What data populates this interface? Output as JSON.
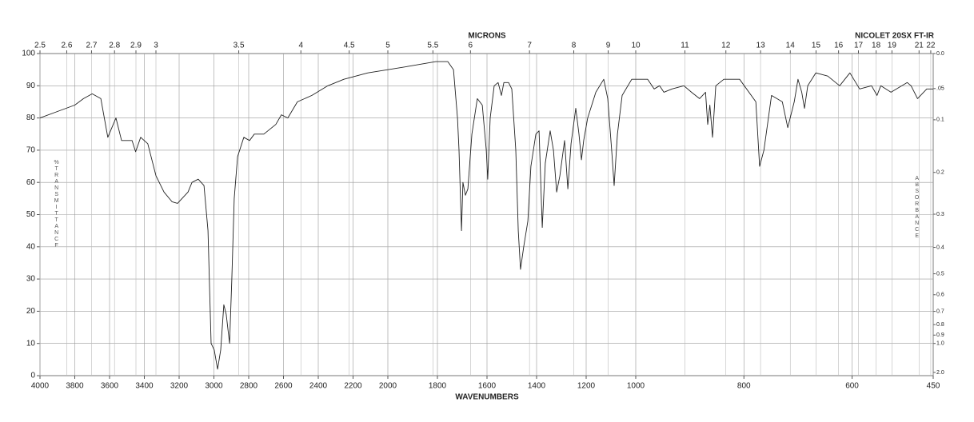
{
  "chart_data": {
    "type": "line",
    "title": "MICRONS",
    "subtitle": "NICOLET 20SX FT-IR",
    "xlabel": "WAVENUMBERS",
    "ylabel": "%TRANSMITTANCE",
    "y2label": "ABSORBANCE",
    "xlim": [
      4000,
      450
    ],
    "x_scale_breaks": [
      2000,
      1000
    ],
    "xticks": [
      4000,
      3800,
      3600,
      3400,
      3200,
      3000,
      2800,
      2600,
      2400,
      2200,
      2000,
      1800,
      1600,
      1400,
      1200,
      1000,
      800,
      600,
      450
    ],
    "micron_ticks": [
      2.5,
      2.6,
      2.7,
      2.8,
      2.9,
      3,
      3.5,
      4,
      4.5,
      5,
      5.5,
      6,
      7,
      8,
      9,
      10,
      11,
      12,
      13,
      14,
      15,
      16,
      17,
      18,
      19,
      21,
      22
    ],
    "ylim": [
      0,
      100
    ],
    "yticks": [
      0,
      10,
      20,
      30,
      40,
      50,
      60,
      70,
      80,
      90,
      100
    ],
    "y2ticks": [
      {
        "value": 0,
        "label": "0.0"
      },
      {
        "value": 0.05,
        "label": ".05"
      },
      {
        "value": 0.1,
        "label": "0.1"
      },
      {
        "value": 0.2,
        "label": "0.2"
      },
      {
        "value": 0.3,
        "label": "0.3"
      },
      {
        "value": 0.4,
        "label": "0.4"
      },
      {
        "value": 0.5,
        "label": "0.5"
      },
      {
        "value": 0.6,
        "label": "0.6"
      },
      {
        "value": 0.7,
        "label": "0.7"
      },
      {
        "value": 0.8,
        "label": "0.8"
      },
      {
        "value": 0.9,
        "label": "0.9"
      },
      {
        "value": 1,
        "label": "1.0"
      },
      {
        "value": 2,
        "label": "2.0"
      }
    ],
    "grid": true,
    "color": "#222222",
    "x": [
      4000,
      3900,
      3800,
      3750,
      3700,
      3650,
      3610,
      3563,
      3531,
      3471,
      3450,
      3421,
      3380,
      3333,
      3287,
      3241,
      3209,
      3149,
      3126,
      3090,
      3057,
      3034,
      3016,
      2998,
      2979,
      2961,
      2943,
      2929,
      2910,
      2897,
      2883,
      2864,
      2828,
      2795,
      2768,
      2713,
      2644,
      2612,
      2575,
      2520,
      2437,
      2345,
      2253,
      2115,
      2000,
      1919,
      1806,
      1758,
      1735,
      1719,
      1713,
      1703,
      1697,
      1687,
      1677,
      1661,
      1639,
      1619,
      1603,
      1597,
      1587,
      1571,
      1555,
      1542,
      1532,
      1513,
      1500,
      1484,
      1474,
      1465,
      1452,
      1435,
      1423,
      1403,
      1390,
      1377,
      1365,
      1345,
      1332,
      1319,
      1306,
      1287,
      1274,
      1261,
      1242,
      1229,
      1219,
      1210,
      1194,
      1161,
      1129,
      1113,
      1097,
      1087,
      1074,
      1055,
      1016,
      978,
      966,
      956,
      948,
      933,
      911,
      897,
      882,
      871,
      867,
      863,
      858,
      852,
      837,
      808,
      778,
      771,
      763,
      749,
      729,
      719,
      707,
      700,
      693,
      688,
      682,
      667,
      645,
      623,
      604,
      586,
      564,
      554,
      547,
      528,
      498,
      491,
      479,
      462,
      450
    ],
    "values": [
      80,
      82,
      84,
      86,
      87.5,
      86,
      74,
      80,
      73,
      73,
      69.5,
      74,
      72,
      62,
      57,
      54,
      53.5,
      57,
      60,
      61,
      59,
      45,
      10,
      8,
      2,
      8,
      22,
      19,
      10,
      30,
      55,
      68,
      74,
      73,
      75,
      75,
      78,
      81,
      80,
      85,
      87,
      90,
      92,
      94,
      95,
      96,
      97.5,
      97.5,
      95,
      80,
      70,
      45,
      60,
      56,
      58,
      75,
      86,
      84,
      70,
      61,
      80,
      90,
      91,
      87,
      91,
      91,
      89,
      70,
      45,
      33,
      40,
      48,
      65,
      75,
      76,
      46,
      66,
      76,
      70,
      57,
      62,
      73,
      58,
      72,
      83,
      75,
      67,
      73,
      80,
      88,
      92,
      86,
      70,
      59,
      75,
      87,
      92,
      92,
      89,
      90,
      88,
      89,
      90,
      88,
      86,
      88,
      78,
      84,
      74,
      90,
      92,
      92,
      85,
      65,
      70,
      87,
      85,
      77,
      85,
      92,
      88,
      83,
      90,
      94,
      93,
      90,
      94,
      89,
      90,
      87,
      90,
      88,
      91,
      90,
      86,
      89,
      89
    ]
  }
}
